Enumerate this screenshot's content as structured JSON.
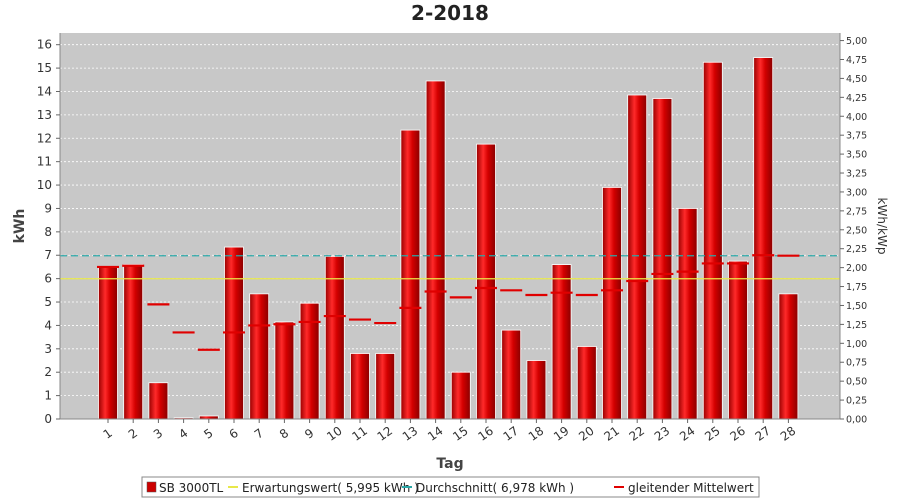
{
  "chart_data": {
    "type": "bar",
    "title": "2-2018",
    "xlabel": "Tag",
    "ylabel": "kWh",
    "y2label": "kWh/kWp",
    "ylim": [
      0,
      16.5
    ],
    "yticks": [
      0,
      1,
      2,
      3,
      4,
      5,
      6,
      7,
      8,
      9,
      10,
      11,
      12,
      13,
      14,
      15,
      16
    ],
    "y2lim": [
      0,
      5.1
    ],
    "y2ticks": [
      "0,00",
      "0,25",
      "0,50",
      "0,75",
      "1,00",
      "1,25",
      "1,50",
      "1,75",
      "2,00",
      "2,25",
      "2,50",
      "2,75",
      "3,00",
      "3,25",
      "3,50",
      "3,75",
      "4,00",
      "4,25",
      "4,50",
      "4,75",
      "5,00"
    ],
    "categories": [
      "1",
      "2",
      "3",
      "4",
      "5",
      "6",
      "7",
      "8",
      "9",
      "10",
      "11",
      "12",
      "13",
      "14",
      "15",
      "16",
      "17",
      "18",
      "19",
      "20",
      "21",
      "22",
      "23",
      "24",
      "25",
      "26",
      "27",
      "28"
    ],
    "series": [
      {
        "name": "SB 3000TL",
        "kind": "bar",
        "color": "#cc0000",
        "values": [
          6.5,
          6.6,
          1.55,
          0.05,
          0.13,
          7.35,
          5.35,
          4.15,
          4.95,
          6.95,
          2.8,
          2.8,
          12.35,
          14.45,
          2.0,
          11.75,
          3.8,
          2.5,
          6.6,
          3.1,
          9.9,
          13.85,
          13.7,
          9.0,
          15.25,
          6.75,
          15.45,
          5.35
        ]
      },
      {
        "name": "Erwartungswert( 5,995 kWh )",
        "kind": "line",
        "color": "#e8e84a",
        "value": 5.995
      },
      {
        "name": "Durchschnitt( 6,978 kWh )",
        "kind": "dashed-line",
        "color": "#2aa7a7",
        "value": 6.978
      },
      {
        "name": "gleitender Mittelwert",
        "kind": "segments",
        "color": "#e00000",
        "values": [
          6.5,
          6.55,
          4.9,
          3.7,
          2.96,
          3.7,
          4.0,
          4.05,
          4.15,
          4.4,
          4.25,
          4.1,
          4.75,
          5.45,
          5.2,
          5.6,
          5.5,
          5.3,
          5.4,
          5.3,
          5.5,
          5.9,
          6.2,
          6.3,
          6.65,
          6.65,
          7.0,
          6.98
        ]
      }
    ],
    "legend_position": "bottom-center",
    "grid": true
  }
}
